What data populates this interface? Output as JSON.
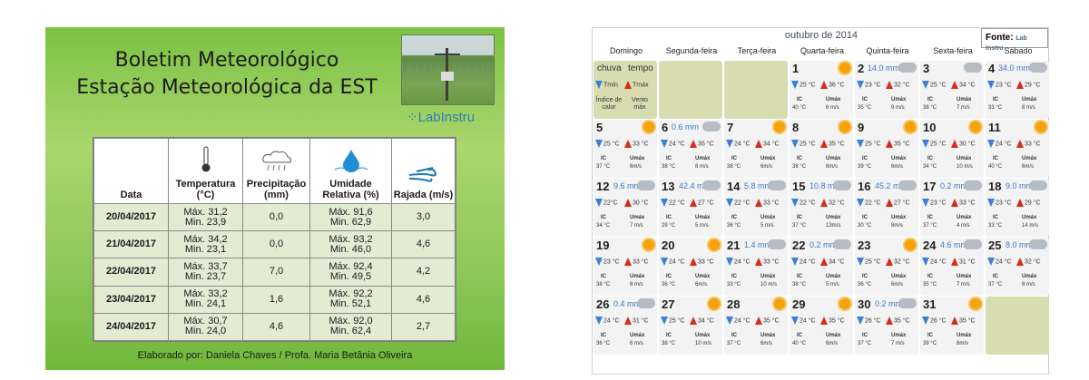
{
  "bulletin": {
    "title_line1": "Boletim Meteorológico",
    "title_line2": "Estação Meteorológica da EST",
    "logo_text": "LabInstru",
    "headers": [
      "Data",
      "Temperatura (°C)",
      "Precipitação (mm)",
      "Umidade Relativa (%)",
      "Rajada (m/s)"
    ],
    "icons": [
      "thermometer-icon",
      "rain-cloud-icon",
      "water-drop-icon",
      "wind-icon"
    ],
    "rows": [
      {
        "date": "20/04/2017",
        "tmax": "Máx. 31,2",
        "tmin": "Min. 23,9",
        "precip": "0,0",
        "hmax": "Máx. 91,6",
        "hmin": "Min. 62,9",
        "gust": "3,0"
      },
      {
        "date": "21/04/2017",
        "tmax": "Máx. 34,2",
        "tmin": "Min. 23,1",
        "precip": "0,0",
        "hmax": "Máx. 93,2",
        "hmin": "Min. 46,0",
        "gust": "4,6"
      },
      {
        "date": "22/04/2017",
        "tmax": "Máx. 33,7",
        "tmin": "Min. 23,7",
        "precip": "7,0",
        "hmax": "Máx. 92,4",
        "hmin": "Min. 49,5",
        "gust": "4,2"
      },
      {
        "date": "23/04/2017",
        "tmax": "Máx. 33,2",
        "tmin": "Min. 24,1",
        "precip": "1,6",
        "hmax": "Máx. 92,2",
        "hmin": "Min. 52,1",
        "gust": "4,6"
      },
      {
        "date": "24/04/2017",
        "tmax": "Máx. 30,7",
        "tmin": "Min. 24,0",
        "precip": "4,6",
        "hmax": "Máx. 92,0",
        "hmin": "Min. 62,4",
        "gust": "2,7"
      }
    ],
    "footer": "Elaborado por: Daniela Chaves / Profa. Maria Betânia Oliveira"
  },
  "calendar": {
    "month": "outubro de 2014",
    "fonte": "Fonte:",
    "fonte_logo": "Lab Instru",
    "weekdays": [
      "Domingo",
      "Segunda-feira",
      "Terça-feira",
      "Quarta-feira",
      "Quinta-feira",
      "Sexta-feira",
      "Sábado"
    ],
    "legend": {
      "l1": "chuva",
      "l2": "tempo",
      "l3": "Índice de calor",
      "l4": "Vento máx",
      "tmin": "Tmín",
      "tmax": "Tmáx"
    },
    "ic_label": "IC",
    "umax_label": "Umáx",
    "weeks": [
      [
        null,
        null,
        null,
        {
          "d": "1",
          "sky": "sun",
          "rain": "",
          "tmin": "25 °C",
          "tmax": "36 °C",
          "ic": "40 °C",
          "w": "6 m/s"
        },
        {
          "d": "2",
          "sky": "cloud",
          "rain": "14.0 mm",
          "tmin": "23 °C",
          "tmax": "32 °C",
          "ic": "35 °C",
          "w": "9 m/s"
        },
        {
          "d": "3",
          "sky": "cloud",
          "rain": "",
          "tmin": "25 °C",
          "tmax": "34 °C",
          "ic": "38 °C",
          "w": "7 m/s"
        },
        {
          "d": "4",
          "sky": "cloud",
          "rain": "34.0 mm",
          "tmin": "23 °C",
          "tmax": "29 °C",
          "ic": "33 °C",
          "w": "8 m/s"
        }
      ],
      [
        {
          "d": "5",
          "sky": "sun",
          "rain": "",
          "tmin": "25 °C",
          "tmax": "33 °C",
          "ic": "37 °C",
          "w": "6m/s"
        },
        {
          "d": "6",
          "sky": "cloud",
          "rain": "0.6 mm",
          "tmin": "24 °C",
          "tmax": "35 °C",
          "ic": "38 °C",
          "w": "8 m/s"
        },
        {
          "d": "7",
          "sky": "sun",
          "rain": "",
          "tmin": "24 °C",
          "tmax": "34 °C",
          "ic": "38 °C",
          "w": "6m/s"
        },
        {
          "d": "8",
          "sky": "sun",
          "rain": "",
          "tmin": "25 °C",
          "tmax": "35 °C",
          "ic": "38 °C",
          "w": "6m/s"
        },
        {
          "d": "9",
          "sky": "sun",
          "rain": "",
          "tmin": "25 °C",
          "tmax": "35 °C",
          "ic": "39 °C",
          "w": "6m/s"
        },
        {
          "d": "10",
          "sky": "sun",
          "rain": "",
          "tmin": "25 °C",
          "tmax": "30 °C",
          "ic": "34 °C",
          "w": "10 m/s"
        },
        {
          "d": "11",
          "sky": "sun",
          "rain": "",
          "tmin": "24 °C",
          "tmax": "33 °C",
          "ic": "40 °C",
          "w": "6m/s"
        }
      ],
      [
        {
          "d": "12",
          "sky": "cloud",
          "rain": "9.6 mm",
          "tmin": "22°C",
          "tmax": "30 °C",
          "ic": "34 °C",
          "w": "7 m/s"
        },
        {
          "d": "13",
          "sky": "cloud",
          "rain": "42.4 mm",
          "tmin": "22 °C",
          "tmax": "27 °C",
          "ic": "29 °C",
          "w": "5 m/s"
        },
        {
          "d": "14",
          "sky": "cloud",
          "rain": "5.8 mm",
          "tmin": "22 °C",
          "tmax": "33 °C",
          "ic": "36 °C",
          "w": "5 m/s"
        },
        {
          "d": "15",
          "sky": "cloud",
          "rain": "10.8 mm",
          "tmin": "22 °C",
          "tmax": "32 °C",
          "ic": "37 °C",
          "w": "13m/s"
        },
        {
          "d": "16",
          "sky": "cloud",
          "rain": "45.2 mm",
          "tmin": "22 °C",
          "tmax": "27 °C",
          "ic": "30 °C",
          "w": "8m/s"
        },
        {
          "d": "17",
          "sky": "cloud",
          "rain": "0.2 mm",
          "tmin": "23 °C",
          "tmax": "33 °C",
          "ic": "37 °C",
          "w": "4 m/s"
        },
        {
          "d": "18",
          "sky": "cloud",
          "rain": "9.0 mm",
          "tmin": "23 °C",
          "tmax": "29 °C",
          "ic": "33 °C",
          "w": "14 m/s"
        }
      ],
      [
        {
          "d": "19",
          "sky": "sun",
          "rain": "",
          "tmin": "23 °C",
          "tmax": "33 °C",
          "ic": "38 °C",
          "w": "8 m/s"
        },
        {
          "d": "20",
          "sky": "sun",
          "rain": "",
          "tmin": "24 °C",
          "tmax": "33 °C",
          "ic": "36 °C",
          "w": "6m/s"
        },
        {
          "d": "21",
          "sky": "cloud",
          "rain": "1.4 mm",
          "tmin": "24 °C",
          "tmax": "33 °C",
          "ic": "33 °C",
          "w": "10 m/s"
        },
        {
          "d": "22",
          "sky": "cloud",
          "rain": "0.2 mm",
          "tmin": "24 °C",
          "tmax": "34 °C",
          "ic": "38 °C",
          "w": "5 m/s"
        },
        {
          "d": "23",
          "sky": "sun",
          "rain": "",
          "tmin": "25 °C",
          "tmax": "32 °C",
          "ic": "36 °C",
          "w": "6m/s"
        },
        {
          "d": "24",
          "sky": "cloud",
          "rain": "4.6 mm",
          "tmin": "24 °C",
          "tmax": "31 °C",
          "ic": "35 °C",
          "w": "7 m/s"
        },
        {
          "d": "25",
          "sky": "cloud",
          "rain": "8.0 mm",
          "tmin": "24 °C",
          "tmax": "32 °C",
          "ic": "37 °C",
          "w": "8 m/s"
        }
      ],
      [
        {
          "d": "26",
          "sky": "cloud",
          "rain": "0.4 mm",
          "tmin": "24 °C",
          "tmax": "31 °C",
          "ic": "36 °C",
          "w": "6 m/s"
        },
        {
          "d": "27",
          "sky": "sun",
          "rain": "",
          "tmin": "25 °C",
          "tmax": "34 °C",
          "ic": "38 °C",
          "w": "10 m/s"
        },
        {
          "d": "28",
          "sky": "sun",
          "rain": "",
          "tmin": "24 °C",
          "tmax": "35 °C",
          "ic": "37 °C",
          "w": "6m/s"
        },
        {
          "d": "29",
          "sky": "sun",
          "rain": "",
          "tmin": "24 °C",
          "tmax": "35 °C",
          "ic": "40 °C",
          "w": "6m/s"
        },
        {
          "d": "30",
          "sky": "cloud",
          "rain": "0.2 mm",
          "tmin": "26 °C",
          "tmax": "35 °C",
          "ic": "37 °C",
          "w": "7 m/s"
        },
        {
          "d": "31",
          "sky": "sun",
          "rain": "",
          "tmin": "26 °C",
          "tmax": "35 °C",
          "ic": "39 °C",
          "w": "8m/s"
        },
        null
      ]
    ]
  }
}
